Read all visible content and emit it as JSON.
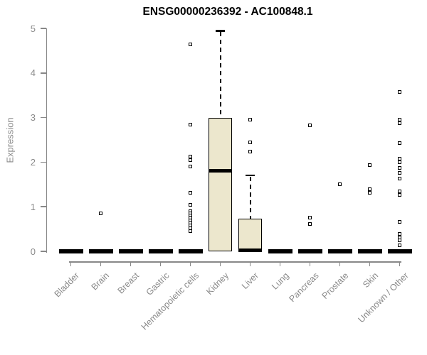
{
  "title": "ENSG00000236392 - AC100848.1",
  "chart_data": {
    "type": "boxplot",
    "title": "ENSG00000236392 - AC100848.1",
    "xlabel": "",
    "ylabel": "Expression",
    "ylim": [
      0,
      5
    ],
    "yticks": [
      0,
      1,
      2,
      3,
      4,
      5
    ],
    "grid": false,
    "legend": false,
    "box_fill_color": "#ECE7CD",
    "box_line_color": "#000000",
    "axis_color": "#888888",
    "categories": [
      "Bladder",
      "Brain",
      "Breast",
      "Gastric",
      "Hematopoietic cells",
      "Kidney",
      "Liver",
      "Lung",
      "Pancreas",
      "Prostate",
      "Skin",
      "Unknown / Other"
    ],
    "series": [
      {
        "label": "Bladder",
        "q1": 0,
        "median": 0,
        "q3": 0,
        "whisker_low": 0,
        "whisker_high": 0,
        "outliers": []
      },
      {
        "label": "Brain",
        "q1": 0,
        "median": 0,
        "q3": 0,
        "whisker_low": 0,
        "whisker_high": 0,
        "outliers": [
          0.85
        ]
      },
      {
        "label": "Breast",
        "q1": 0,
        "median": 0,
        "q3": 0,
        "whisker_low": 0,
        "whisker_high": 0,
        "outliers": []
      },
      {
        "label": "Gastric",
        "q1": 0,
        "median": 0,
        "q3": 0,
        "whisker_low": 0,
        "whisker_high": 0,
        "outliers": []
      },
      {
        "label": "Hematopoietic cells",
        "q1": 0,
        "median": 0,
        "q3": 0,
        "whisker_low": 0,
        "whisker_high": 0,
        "outliers": [
          4.64,
          2.84,
          2.12,
          2.05,
          1.9,
          1.32,
          1.05,
          0.9,
          0.85,
          0.8,
          0.75,
          0.7,
          0.64,
          0.58,
          0.52,
          0.46
        ]
      },
      {
        "label": "Kidney",
        "q1": 0,
        "median": 1.81,
        "q3": 3.0,
        "whisker_low": 0,
        "whisker_high": 4.95,
        "outliers": []
      },
      {
        "label": "Liver",
        "q1": 0,
        "median": 0,
        "q3": 0.73,
        "whisker_low": 0,
        "whisker_high": 1.71,
        "outliers": [
          2.96,
          2.44,
          2.24
        ]
      },
      {
        "label": "Lung",
        "q1": 0,
        "median": 0,
        "q3": 0,
        "whisker_low": 0,
        "whisker_high": 0,
        "outliers": []
      },
      {
        "label": "Pancreas",
        "q1": 0,
        "median": 0,
        "q3": 0,
        "whisker_low": 0,
        "whisker_high": 0,
        "outliers": [
          2.83,
          0.75,
          0.61
        ]
      },
      {
        "label": "Prostate",
        "q1": 0,
        "median": 0,
        "q3": 0,
        "whisker_low": 0,
        "whisker_high": 0,
        "outliers": [
          1.51
        ]
      },
      {
        "label": "Skin",
        "q1": 0,
        "median": 0,
        "q3": 0,
        "whisker_low": 0,
        "whisker_high": 0,
        "outliers": [
          1.93,
          1.39,
          1.31
        ]
      },
      {
        "label": "Unknown / Other",
        "q1": 0,
        "median": 0,
        "q3": 0,
        "whisker_low": 0,
        "whisker_high": 0,
        "outliers": [
          3.58,
          2.96,
          2.88,
          2.43,
          2.08,
          2.0,
          1.87,
          1.76,
          1.63,
          1.34,
          1.26,
          0.66,
          0.39,
          0.31,
          0.25,
          0.14
        ]
      }
    ]
  }
}
